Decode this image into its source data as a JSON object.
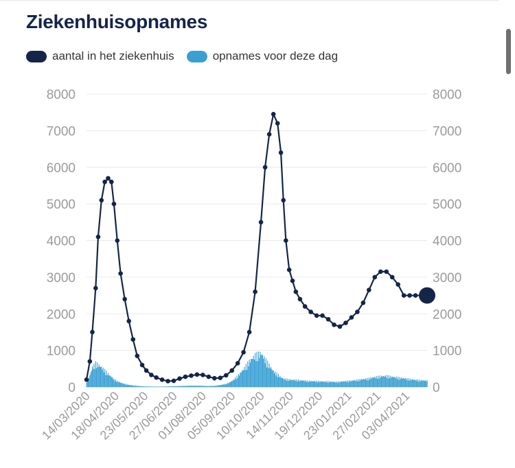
{
  "chart_data": {
    "type": "line",
    "title": "Ziekenhuisopnames",
    "series": [
      {
        "name": "aantal in het ziekenhuis",
        "color": "#14254a",
        "kind": "line-markers",
        "x": [
          "14/03/2020",
          "18/03/2020",
          "21/03/2020",
          "25/03/2020",
          "28/03/2020",
          "01/04/2020",
          "05/04/2020",
          "09/04/2020",
          "13/04/2020",
          "16/04/2020",
          "20/04/2020",
          "24/04/2020",
          "29/04/2020",
          "04/05/2020",
          "09/05/2020",
          "14/05/2020",
          "20/05/2020",
          "25/05/2020",
          "31/05/2020",
          "06/06/2020",
          "13/06/2020",
          "20/06/2020",
          "27/06/2020",
          "04/07/2020",
          "11/07/2020",
          "18/07/2020",
          "25/07/2020",
          "01/08/2020",
          "08/08/2020",
          "15/08/2020",
          "22/08/2020",
          "29/08/2020",
          "05/09/2020",
          "12/09/2020",
          "19/09/2020",
          "26/09/2020",
          "03/10/2020",
          "10/10/2020",
          "15/10/2020",
          "20/10/2020",
          "25/10/2020",
          "30/10/2020",
          "03/11/2020",
          "06/11/2020",
          "09/11/2020",
          "13/11/2020",
          "17/11/2020",
          "21/11/2020",
          "26/11/2020",
          "02/12/2020",
          "09/12/2020",
          "16/12/2020",
          "23/12/2020",
          "30/12/2020",
          "06/01/2021",
          "13/01/2021",
          "20/01/2021",
          "27/01/2021",
          "03/02/2021",
          "10/02/2021",
          "17/02/2021",
          "24/02/2021",
          "03/03/2021",
          "10/03/2021",
          "17/03/2021",
          "24/03/2021",
          "31/03/2021",
          "07/04/2021",
          "14/04/2021",
          "21/04/2021",
          "28/04/2021"
        ],
        "values": [
          200,
          700,
          1500,
          2700,
          4100,
          5100,
          5600,
          5700,
          5600,
          5000,
          4000,
          3100,
          2400,
          1800,
          1300,
          850,
          600,
          450,
          330,
          260,
          200,
          160,
          170,
          230,
          280,
          310,
          340,
          330,
          280,
          240,
          250,
          320,
          450,
          650,
          950,
          1500,
          2600,
          4500,
          6000,
          6900,
          7450,
          7200,
          6400,
          5100,
          4000,
          3200,
          2900,
          2600,
          2400,
          2200,
          2050,
          1950,
          1950,
          1850,
          1700,
          1650,
          1750,
          1900,
          2050,
          2300,
          2650,
          3000,
          3150,
          3150,
          3000,
          2800,
          2500,
          2500,
          2500,
          2500,
          2500
        ],
        "last_point_highlight": true
      },
      {
        "name": "opnames voor deze dag",
        "color": "#3a9fd3",
        "kind": "bar",
        "x": [
          "14/03/2020",
          "18/03/2020",
          "21/03/2020",
          "25/03/2020",
          "28/03/2020",
          "01/04/2020",
          "05/04/2020",
          "09/04/2020",
          "13/04/2020",
          "16/04/2020",
          "20/04/2020",
          "24/04/2020",
          "29/04/2020",
          "04/05/2020",
          "09/05/2020",
          "14/05/2020",
          "20/05/2020",
          "25/05/2020",
          "31/05/2020",
          "06/06/2020",
          "13/06/2020",
          "20/06/2020",
          "27/06/2020",
          "04/07/2020",
          "11/07/2020",
          "18/07/2020",
          "25/07/2020",
          "01/08/2020",
          "08/08/2020",
          "15/08/2020",
          "22/08/2020",
          "29/08/2020",
          "05/09/2020",
          "12/09/2020",
          "19/09/2020",
          "26/09/2020",
          "03/10/2020",
          "10/10/2020",
          "15/10/2020",
          "20/10/2020",
          "25/10/2020",
          "30/10/2020",
          "03/11/2020",
          "06/11/2020",
          "09/11/2020",
          "13/11/2020",
          "17/11/2020",
          "21/11/2020",
          "26/11/2020",
          "02/12/2020",
          "09/12/2020",
          "16/12/2020",
          "23/12/2020",
          "30/12/2020",
          "06/01/2021",
          "13/01/2021",
          "20/01/2021",
          "27/01/2021",
          "03/02/2021",
          "10/02/2021",
          "17/02/2021",
          "24/02/2021",
          "03/03/2021",
          "10/03/2021",
          "17/03/2021",
          "24/03/2021",
          "31/03/2021",
          "07/04/2021",
          "14/04/2021",
          "21/04/2021",
          "28/04/2021"
        ],
        "values": [
          100,
          300,
          500,
          600,
          560,
          500,
          420,
          330,
          260,
          200,
          150,
          110,
          80,
          55,
          40,
          30,
          20,
          15,
          12,
          10,
          10,
          15,
          20,
          25,
          30,
          35,
          35,
          30,
          25,
          30,
          50,
          80,
          150,
          280,
          450,
          650,
          800,
          850,
          700,
          550,
          400,
          320,
          250,
          210,
          200,
          190,
          180,
          180,
          170,
          160,
          150,
          150,
          140,
          140,
          130,
          135,
          150,
          160,
          180,
          200,
          220,
          250,
          270,
          280,
          260,
          240,
          220,
          200,
          180,
          170,
          160
        ]
      }
    ],
    "x_tick_labels": [
      "14/03/2020",
      "18/04/2020",
      "23/05/2020",
      "27/06/2020",
      "01/08/2020",
      "05/09/2020",
      "10/10/2020",
      "14/11/2020",
      "19/12/2020",
      "23/01/2021",
      "27/02/2021",
      "03/04/2021"
    ],
    "y_ticks": [
      0,
      1000,
      2000,
      3000,
      4000,
      5000,
      6000,
      7000,
      8000
    ],
    "y_tick_labels": [
      "0",
      "1000",
      "2000",
      "3000",
      "4000",
      "5000",
      "6000",
      "7000",
      "8000"
    ],
    "ylim": [
      0,
      8000
    ],
    "xlim": [
      "14/03/2020",
      "28/04/2021"
    ],
    "grid": true,
    "legend_position": "top-left",
    "dual_y_axis_labels": true
  }
}
